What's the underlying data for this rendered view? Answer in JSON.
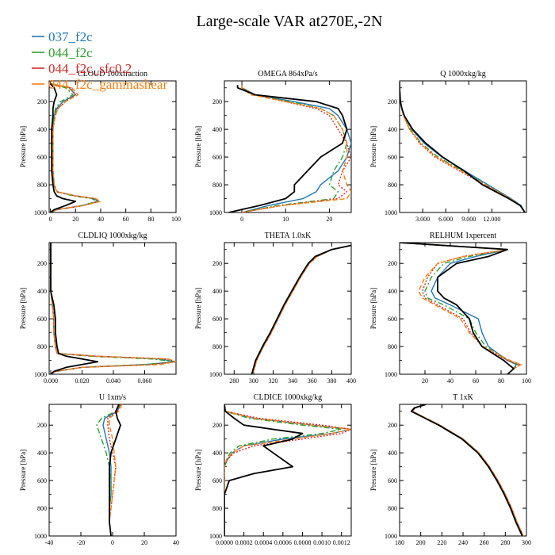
{
  "figure": {
    "title": "Large-scale VAR at270E,-2N",
    "ylabel": "Pressure [hPa]"
  },
  "legend": [
    {
      "name": "037_f2c",
      "color": "#1f77b4",
      "dash": "solid"
    },
    {
      "name": "044_f2c",
      "color": "#2ca02c",
      "dash": "dashdot"
    },
    {
      "name": "044_f2c_sfc0.2",
      "color": "#d62728",
      "dash": "dot"
    },
    {
      "name": "044_f2c_gammashear",
      "color": "#ff7f0e",
      "dash": "dash"
    },
    {
      "name": "",
      "color": "#000000",
      "dash": "solid"
    }
  ],
  "chart_data": [
    {
      "type": "line",
      "title": "CLOUD 100xfraction",
      "xlim": [
        -1,
        100
      ],
      "ylim": [
        1000,
        50
      ],
      "xticks": [
        "0",
        "20",
        "40",
        "60",
        "80",
        "100"
      ],
      "xtick_values": [
        0,
        20,
        40,
        60,
        80,
        100
      ],
      "yticks": [
        200,
        400,
        600,
        800,
        1000
      ],
      "p": [
        70,
        100,
        150,
        200,
        250,
        300,
        400,
        500,
        600,
        700,
        800,
        850,
        880,
        900,
        920,
        950,
        980,
        1000
      ],
      "series": [
        [
          0,
          15,
          20,
          10,
          5,
          3,
          2,
          2,
          2,
          2,
          3,
          5,
          20,
          35,
          38,
          25,
          5,
          0
        ],
        [
          0,
          12,
          18,
          8,
          4,
          3,
          2,
          2,
          2,
          2,
          3,
          5,
          18,
          33,
          37,
          25,
          5,
          0
        ],
        [
          0,
          16,
          20,
          12,
          6,
          4,
          2,
          2,
          2,
          2,
          3,
          5,
          20,
          36,
          39,
          26,
          5,
          0
        ],
        [
          0,
          17,
          22,
          12,
          6,
          4,
          2,
          2,
          2,
          2,
          3,
          5,
          20,
          36,
          40,
          26,
          5,
          0
        ],
        [
          0,
          3,
          5,
          3,
          2,
          2,
          1,
          1,
          1,
          1,
          2,
          3,
          5,
          10,
          20,
          12,
          3,
          0
        ]
      ]
    },
    {
      "type": "line",
      "title": "OMEGA 864xPa/s",
      "xlim": [
        -4,
        25
      ],
      "ylim": [
        1000,
        50
      ],
      "xticks": [
        "0",
        "10",
        "20"
      ],
      "xtick_values": [
        0,
        10,
        20
      ],
      "yticks": [
        200,
        400,
        600,
        800,
        1000
      ],
      "p": [
        80,
        100,
        150,
        200,
        250,
        300,
        400,
        500,
        600,
        700,
        800,
        850,
        900,
        950,
        1000
      ],
      "series": [
        [
          0,
          0,
          3,
          12,
          20,
          22,
          24,
          25,
          24,
          22,
          18,
          17,
          14,
          6,
          0
        ],
        [
          0,
          0,
          3,
          11,
          18,
          21,
          23,
          24,
          23,
          21,
          20,
          22,
          21,
          8,
          0
        ],
        [
          0,
          0,
          3,
          10,
          17,
          20,
          22,
          24,
          25,
          23,
          22,
          24,
          22,
          9,
          0
        ],
        [
          0,
          0,
          2,
          10,
          18,
          21,
          23,
          24,
          24,
          23,
          24,
          25,
          24,
          9,
          0
        ],
        [
          -1,
          -1,
          3,
          17,
          22,
          23,
          24,
          23,
          18,
          15,
          12,
          12,
          10,
          4,
          -3
        ]
      ]
    },
    {
      "type": "line",
      "title": "Q 1000xkg/kg",
      "xlim": [
        0,
        16.5
      ],
      "ylim": [
        1000,
        50
      ],
      "xticks": [
        "3.000",
        "6.000",
        "9.000",
        "12.000"
      ],
      "xtick_values": [
        3,
        6,
        9,
        12
      ],
      "yticks": [
        200,
        400,
        600,
        800,
        1000
      ],
      "p": [
        60,
        100,
        150,
        200,
        250,
        300,
        400,
        500,
        600,
        700,
        800,
        850,
        900,
        950,
        1000
      ],
      "series": [
        [
          0,
          0,
          0.05,
          0.1,
          0.3,
          0.6,
          1.6,
          3.2,
          5.5,
          8.5,
          11.5,
          13,
          14.5,
          15.8,
          16.3
        ],
        [
          0,
          0,
          0.05,
          0.1,
          0.3,
          0.5,
          1.4,
          2.8,
          5.0,
          8.2,
          11.2,
          12.8,
          14.4,
          15.7,
          16.3
        ],
        [
          0,
          0,
          0.05,
          0.1,
          0.3,
          0.5,
          1.3,
          2.6,
          4.6,
          7.8,
          11.0,
          12.6,
          14.3,
          15.7,
          16.3
        ],
        [
          0,
          0,
          0.05,
          0.1,
          0.3,
          0.5,
          1.3,
          2.7,
          4.8,
          8.0,
          11.2,
          12.8,
          14.4,
          15.7,
          16.3
        ],
        [
          0,
          0,
          0.05,
          0.1,
          0.3,
          0.6,
          1.7,
          3.4,
          5.6,
          8.4,
          10.8,
          12.5,
          14.2,
          15.7,
          16.3
        ]
      ]
    },
    {
      "type": "line",
      "title": "CLDLIQ 1000xkg/kg",
      "xlim": [
        -0.001,
        0.08
      ],
      "ylim": [
        1000,
        50
      ],
      "xticks": [
        "0.000",
        "0.020",
        "0.040",
        "0.060"
      ],
      "xtick_values": [
        0,
        0.02,
        0.04,
        0.06
      ],
      "yticks": [
        200,
        400,
        600,
        800,
        1000
      ],
      "p": [
        50,
        200,
        400,
        500,
        600,
        700,
        800,
        850,
        870,
        890,
        910,
        930,
        950,
        980,
        1000
      ],
      "series": [
        [
          0,
          0,
          0,
          0.001,
          0.002,
          0.002,
          0.003,
          0.004,
          0.03,
          0.07,
          0.08,
          0.06,
          0.02,
          0.003,
          0
        ],
        [
          0,
          0,
          0,
          0.001,
          0.002,
          0.002,
          0.003,
          0.004,
          0.025,
          0.065,
          0.08,
          0.06,
          0.02,
          0.003,
          0
        ],
        [
          0,
          0,
          0,
          0.001,
          0.002,
          0.002,
          0.003,
          0.004,
          0.03,
          0.075,
          0.08,
          0.065,
          0.02,
          0.003,
          0
        ],
        [
          0,
          0,
          0,
          0.001,
          0.002,
          0.002,
          0.003,
          0.004,
          0.03,
          0.075,
          0.08,
          0.07,
          0.02,
          0.003,
          0
        ],
        [
          0,
          0,
          0,
          0.002,
          0.003,
          0.003,
          0.004,
          0.005,
          0.01,
          0.02,
          0.03,
          0.02,
          0.01,
          0.002,
          0
        ]
      ]
    },
    {
      "type": "line",
      "title": "THETA 1.0xK",
      "xlim": [
        270,
        400
      ],
      "ylim": [
        1000,
        50
      ],
      "xticks": [
        "280",
        "300",
        "320",
        "340",
        "360",
        "380",
        "400"
      ],
      "xtick_values": [
        280,
        300,
        320,
        340,
        360,
        380,
        400
      ],
      "yticks": [
        200,
        400,
        600,
        800,
        1000
      ],
      "p": [
        70,
        100,
        150,
        200,
        300,
        400,
        500,
        600,
        700,
        800,
        900,
        1000
      ],
      "series": [
        [
          400,
          380,
          365,
          357,
          348,
          340,
          332,
          325,
          318,
          310,
          303,
          299
        ],
        [
          400,
          380,
          365,
          357,
          348,
          340,
          332,
          325,
          318,
          310,
          303,
          299
        ],
        [
          400,
          380,
          365,
          357,
          348,
          340,
          332,
          325,
          318,
          310,
          303,
          299
        ],
        [
          400,
          380,
          365,
          357,
          348,
          340,
          332,
          325,
          318,
          310,
          303,
          299
        ],
        [
          400,
          380,
          363,
          356,
          347,
          339,
          331,
          324,
          317,
          309,
          302,
          298
        ]
      ]
    },
    {
      "type": "line",
      "title": "RELHUM 1xpercent",
      "xlim": [
        0,
        100
      ],
      "ylim": [
        1000,
        50
      ],
      "xticks": [
        "20",
        "40",
        "60",
        "80",
        "100"
      ],
      "xtick_values": [
        20,
        40,
        60,
        80,
        100
      ],
      "yticks": [
        200,
        400,
        600,
        800,
        1000
      ],
      "p": [
        50,
        100,
        150,
        200,
        300,
        400,
        450,
        500,
        600,
        700,
        800,
        900,
        930,
        960,
        1000
      ],
      "series": [
        [
          0,
          85,
          60,
          40,
          30,
          25,
          28,
          40,
          62,
          65,
          70,
          85,
          92,
          90,
          85
        ],
        [
          0,
          85,
          55,
          35,
          25,
          20,
          22,
          35,
          55,
          60,
          68,
          85,
          93,
          90,
          85
        ],
        [
          0,
          85,
          50,
          30,
          22,
          18,
          20,
          30,
          50,
          56,
          65,
          85,
          95,
          90,
          85
        ],
        [
          0,
          85,
          50,
          30,
          20,
          15,
          18,
          28,
          48,
          55,
          66,
          87,
          96,
          90,
          85
        ],
        [
          0,
          85,
          70,
          45,
          30,
          30,
          35,
          45,
          55,
          58,
          65,
          82,
          86,
          90,
          85
        ]
      ]
    },
    {
      "type": "line",
      "title": "U 1xm/s",
      "xlim": [
        -40,
        40
      ],
      "ylim": [
        1000,
        50
      ],
      "xticks": [
        "-40",
        "-20",
        "0",
        "20",
        "40"
      ],
      "xtick_values": [
        -40,
        -20,
        0,
        20,
        40
      ],
      "yticks": [
        200,
        400,
        600,
        800,
        1000
      ],
      "p": [
        50,
        100,
        150,
        200,
        300,
        400,
        500,
        600,
        700,
        800,
        900,
        1000
      ],
      "series": [
        [
          5,
          3,
          -5,
          -6,
          -4,
          -2,
          -1,
          -1,
          -1,
          -2,
          -2,
          -1
        ],
        [
          5,
          2,
          -7,
          -10,
          -7,
          -4,
          -2,
          -1,
          -1,
          -2,
          -2,
          -1
        ],
        [
          5,
          3,
          -3,
          -3,
          -2,
          0,
          2,
          1,
          0,
          -1,
          -2,
          -1
        ],
        [
          6,
          4,
          -2,
          -2,
          0,
          1,
          2,
          1,
          0,
          -1,
          -2,
          -1
        ],
        [
          4,
          2,
          3,
          5,
          2,
          -1,
          -2,
          -2,
          -2,
          -2,
          -2,
          -1
        ]
      ]
    },
    {
      "type": "line",
      "title": "CLDICE 1000xkg/kg",
      "xlim": [
        0,
        0.0013
      ],
      "ylim": [
        1000,
        50
      ],
      "xticks": [
        "0.0000",
        "0.0002",
        "0.0004",
        "0.0006",
        "0.0008",
        "0.0010",
        "0.0012"
      ],
      "xtick_values": [
        0,
        0.0002,
        0.0004,
        0.0006,
        0.0008,
        0.001,
        0.0012
      ],
      "yticks": [
        200,
        400,
        600,
        800,
        1000
      ],
      "p": [
        50,
        100,
        150,
        200,
        230,
        260,
        300,
        350,
        400,
        450,
        500,
        550,
        600,
        700,
        800,
        900,
        1000
      ],
      "series": [
        [
          0,
          1e-05,
          0.0003,
          0.0009,
          0.0013,
          0.0011,
          0.0006,
          0.0002,
          8e-05,
          3e-05,
          0,
          0,
          0,
          0,
          0,
          0,
          0
        ],
        [
          0,
          1e-05,
          0.00025,
          0.0008,
          0.0012,
          0.001,
          0.0005,
          0.00015,
          6e-05,
          2e-05,
          0,
          0,
          0,
          0,
          0,
          0,
          0
        ],
        [
          0,
          1e-05,
          0.00035,
          0.001,
          0.0013,
          0.0012,
          0.0008,
          0.0003,
          0.0001,
          3e-05,
          0,
          0,
          0,
          0,
          0,
          0,
          0
        ],
        [
          0,
          1e-05,
          0.0003,
          0.0009,
          0.0013,
          0.0011,
          0.0007,
          0.0002,
          8e-05,
          2e-05,
          0,
          0,
          0,
          0,
          0,
          0,
          0
        ],
        [
          0,
          1e-05,
          0.0001,
          0.0002,
          0.0005,
          0.0008,
          0.0007,
          0.0004,
          0.0005,
          0.0006,
          0.0007,
          0.0003,
          5e-05,
          0,
          0,
          0,
          0
        ]
      ]
    },
    {
      "type": "line",
      "title": "T 1xK",
      "xlim": [
        180,
        300
      ],
      "ylim": [
        1000,
        50
      ],
      "xticks": [
        "180",
        "200",
        "220",
        "240",
        "260",
        "280",
        "300"
      ],
      "xtick_values": [
        180,
        200,
        220,
        240,
        260,
        280,
        300
      ],
      "yticks": [
        200,
        400,
        600,
        800,
        1000
      ],
      "p": [
        50,
        75,
        100,
        150,
        200,
        300,
        400,
        500,
        600,
        700,
        800,
        900,
        950,
        1000
      ],
      "series": [
        [
          205,
          195,
          192,
          205,
          218,
          240,
          255,
          265,
          273,
          280,
          286,
          291,
          294,
          297
        ],
        [
          205,
          195,
          192,
          205,
          218,
          240,
          255,
          265,
          273,
          280,
          286,
          291,
          294,
          297
        ],
        [
          205,
          195,
          192,
          205,
          218,
          240,
          255,
          265,
          273,
          280,
          286,
          291,
          294,
          297
        ],
        [
          205,
          195,
          192,
          205,
          218,
          240,
          255,
          265,
          273,
          280,
          286,
          291,
          294,
          297
        ],
        [
          205,
          194,
          191,
          204,
          217,
          239,
          254,
          264,
          272,
          279,
          285,
          290,
          293,
          296
        ]
      ]
    }
  ]
}
